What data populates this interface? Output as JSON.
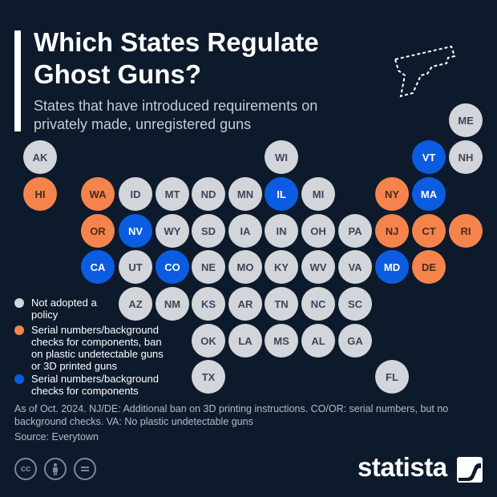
{
  "title": "Which States Regulate Ghost Guns?",
  "subtitle": "States that have introduced requirements on privately made, unregistered guns",
  "colors": {
    "background": "#0d1a2b",
    "not_adopted": "#d2d5da",
    "components_ban": "#f5844c",
    "components": "#0b5ce0"
  },
  "legend": [
    {
      "key": "na",
      "label": "Not adopted a policy"
    },
    {
      "key": "or",
      "label": "Serial numbers/background checks for components, ban on plastic undetectable guns or 3D printed guns"
    },
    {
      "key": "bl",
      "label": "Serial numbers/background checks for components"
    }
  ],
  "states": [
    {
      "abbr": "ME",
      "status": "na"
    },
    {
      "abbr": "AK",
      "status": "na"
    },
    {
      "abbr": "WI",
      "status": "na"
    },
    {
      "abbr": "VT",
      "status": "bl"
    },
    {
      "abbr": "NH",
      "status": "na"
    },
    {
      "abbr": "HI",
      "status": "or"
    },
    {
      "abbr": "WA",
      "status": "or"
    },
    {
      "abbr": "ID",
      "status": "na"
    },
    {
      "abbr": "MT",
      "status": "na"
    },
    {
      "abbr": "ND",
      "status": "na"
    },
    {
      "abbr": "MN",
      "status": "na"
    },
    {
      "abbr": "IL",
      "status": "bl"
    },
    {
      "abbr": "MI",
      "status": "na"
    },
    {
      "abbr": "NY",
      "status": "or"
    },
    {
      "abbr": "MA",
      "status": "bl"
    },
    {
      "abbr": "OR",
      "status": "or"
    },
    {
      "abbr": "NV",
      "status": "bl"
    },
    {
      "abbr": "WY",
      "status": "na"
    },
    {
      "abbr": "SD",
      "status": "na"
    },
    {
      "abbr": "IA",
      "status": "na"
    },
    {
      "abbr": "IN",
      "status": "na"
    },
    {
      "abbr": "OH",
      "status": "na"
    },
    {
      "abbr": "PA",
      "status": "na"
    },
    {
      "abbr": "NJ",
      "status": "or"
    },
    {
      "abbr": "CT",
      "status": "or"
    },
    {
      "abbr": "RI",
      "status": "or"
    },
    {
      "abbr": "CA",
      "status": "bl"
    },
    {
      "abbr": "UT",
      "status": "na"
    },
    {
      "abbr": "CO",
      "status": "bl"
    },
    {
      "abbr": "NE",
      "status": "na"
    },
    {
      "abbr": "MO",
      "status": "na"
    },
    {
      "abbr": "KY",
      "status": "na"
    },
    {
      "abbr": "WV",
      "status": "na"
    },
    {
      "abbr": "VA",
      "status": "na"
    },
    {
      "abbr": "MD",
      "status": "bl"
    },
    {
      "abbr": "DE",
      "status": "or"
    },
    {
      "abbr": "AZ",
      "status": "na"
    },
    {
      "abbr": "NM",
      "status": "na"
    },
    {
      "abbr": "KS",
      "status": "na"
    },
    {
      "abbr": "AR",
      "status": "na"
    },
    {
      "abbr": "TN",
      "status": "na"
    },
    {
      "abbr": "NC",
      "status": "na"
    },
    {
      "abbr": "SC",
      "status": "na"
    },
    {
      "abbr": "OK",
      "status": "na"
    },
    {
      "abbr": "LA",
      "status": "na"
    },
    {
      "abbr": "MS",
      "status": "na"
    },
    {
      "abbr": "AL",
      "status": "na"
    },
    {
      "abbr": "GA",
      "status": "na"
    },
    {
      "abbr": "TX",
      "status": "na"
    },
    {
      "abbr": "FL",
      "status": "na"
    }
  ],
  "notes": "As of Oct. 2024. NJ/DE: Additional ban on 3D printing instructions. CO/OR: serial numbers, but no background checks. VA: No plastic undetectable guns",
  "source": "Source: Everytown",
  "footer": {
    "brand": "statista",
    "license_icons": [
      "cc-icon",
      "by-icon",
      "nd-icon"
    ]
  }
}
